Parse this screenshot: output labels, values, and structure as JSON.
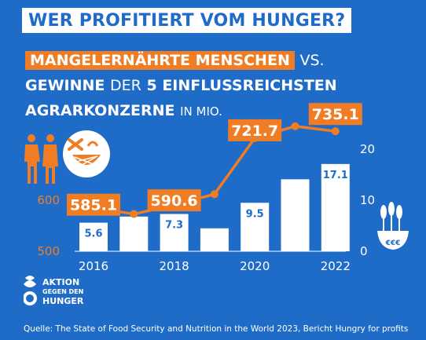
{
  "banner": "WER PROFITIERT VOM HUNGER?",
  "headline": {
    "l1_hl": "MANGELERNÄHRTE MENSCHEN",
    "l1_rest": "VS.",
    "l2_bold": "GEWINNE",
    "l2_thin": "DER",
    "l2_rest": "5 EINFLUSSREICHSTEN",
    "l3_bold": "AGRARKONZERNE",
    "l3_small": "IN MIO."
  },
  "logo": {
    "line1": "AKTION",
    "line2": "GEGEN DEN",
    "line3": "HUNGER"
  },
  "grain_label": "€€€",
  "source": "Quelle: The State of Food Security and Nutrition in the World 2023, Bericht Hungry for profits",
  "colors": {
    "background": "#1e6bc8",
    "accent": "#f07d24",
    "bar": "#ffffff"
  },
  "chart_data": {
    "type": "bar+line",
    "years": [
      2016,
      2017,
      2018,
      2019,
      2020,
      2021,
      2022
    ],
    "x_tick_labels": [
      "2016",
      "2018",
      "2020",
      "2022"
    ],
    "left_axis": {
      "ticks": [
        "500",
        "600"
      ],
      "range": [
        500,
        700
      ]
    },
    "right_axis": {
      "ticks": [
        "0",
        "10",
        "20"
      ],
      "range": [
        0,
        20
      ]
    },
    "undernourished_millions": [
      585.1,
      573,
      590.6,
      612,
      721.7,
      745,
      735.1
    ],
    "undernourished_labels": [
      {
        "year": 2016,
        "text": "585.1"
      },
      {
        "year": 2018,
        "text": "590.6"
      },
      {
        "year": 2020,
        "text": "721.7"
      },
      {
        "year": 2022,
        "text": "735.1"
      }
    ],
    "profits_billions": [
      5.6,
      6.8,
      7.3,
      4.5,
      9.5,
      14.1,
      17.1
    ],
    "profit_labels": [
      {
        "year": 2016,
        "text": "5.6"
      },
      {
        "year": 2018,
        "text": "7.3"
      },
      {
        "year": 2020,
        "text": "9.5"
      },
      {
        "year": 2022,
        "text": "17.1"
      }
    ]
  }
}
